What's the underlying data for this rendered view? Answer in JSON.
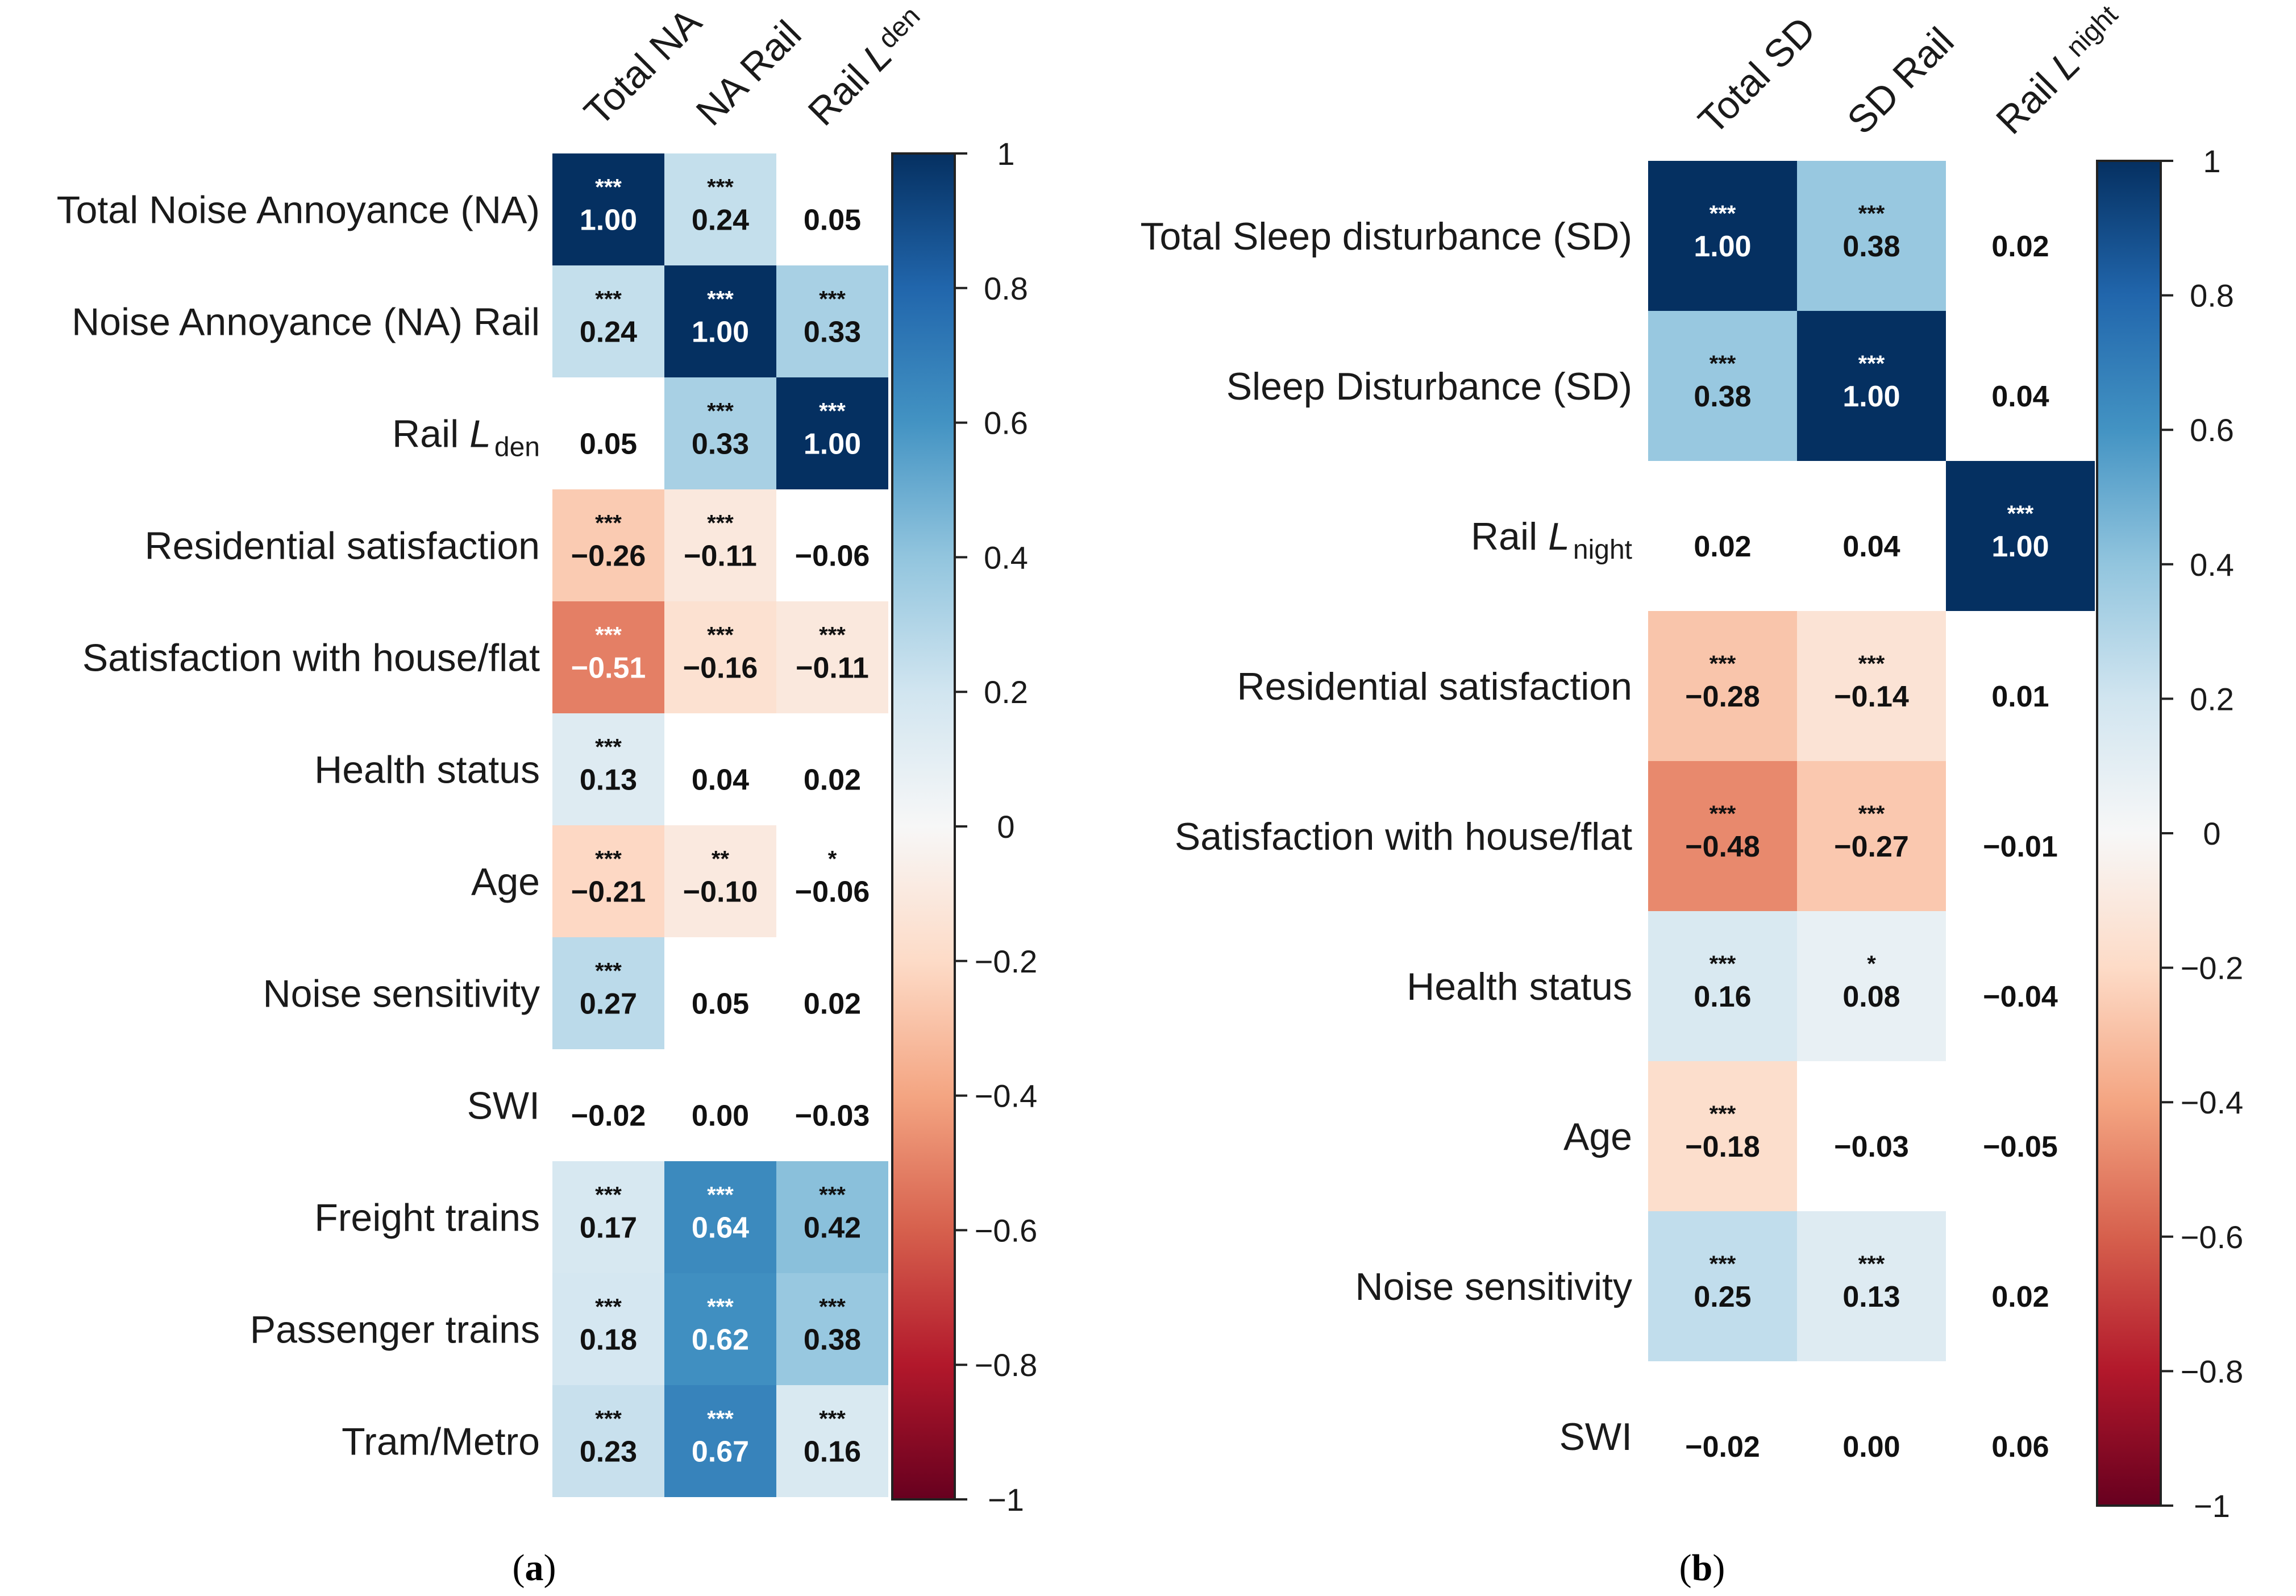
{
  "chart_data": [
    {
      "type": "heatmap",
      "panel_label": "a",
      "title": "",
      "columns": [
        {
          "text": "Total NA",
          "sub": ""
        },
        {
          "text": "NA Rail",
          "sub": ""
        },
        {
          "text": "Rail L",
          "sub": "den"
        }
      ],
      "rows": [
        {
          "text": "Total Noise Annoyance (NA)",
          "sub": ""
        },
        {
          "text": "Noise Annoyance (NA) Rail",
          "sub": ""
        },
        {
          "text": "Rail L",
          "sub": "den"
        },
        {
          "text": "Residential satisfaction",
          "sub": ""
        },
        {
          "text": "Satisfaction with house/flat",
          "sub": ""
        },
        {
          "text": "Health status",
          "sub": ""
        },
        {
          "text": "Age",
          "sub": ""
        },
        {
          "text": "Noise sensitivity",
          "sub": ""
        },
        {
          "text": "SWI",
          "sub": ""
        },
        {
          "text": "Freight trains",
          "sub": ""
        },
        {
          "text": "Passenger trains",
          "sub": ""
        },
        {
          "text": "Tram/Metro",
          "sub": ""
        }
      ],
      "values": [
        [
          1.0,
          0.24,
          0.05
        ],
        [
          0.24,
          1.0,
          0.33
        ],
        [
          0.05,
          0.33,
          1.0
        ],
        [
          -0.26,
          -0.11,
          -0.06
        ],
        [
          -0.51,
          -0.16,
          -0.11
        ],
        [
          0.13,
          0.04,
          0.02
        ],
        [
          -0.21,
          -0.1,
          -0.06
        ],
        [
          0.27,
          0.05,
          0.02
        ],
        [
          -0.02,
          0.0,
          -0.03
        ],
        [
          0.17,
          0.64,
          0.42
        ],
        [
          0.18,
          0.62,
          0.38
        ],
        [
          0.23,
          0.67,
          0.16
        ]
      ],
      "labels": [
        [
          "1.00",
          "0.24",
          "0.05"
        ],
        [
          "0.24",
          "1.00",
          "0.33"
        ],
        [
          "0.05",
          "0.33",
          "1.00"
        ],
        [
          "−0.26",
          "−0.11",
          "−0.06"
        ],
        [
          "−0.51",
          "−0.16",
          "−0.11"
        ],
        [
          "0.13",
          "0.04",
          "0.02"
        ],
        [
          "−0.21",
          "−0.10",
          "−0.06"
        ],
        [
          "0.27",
          "0.05",
          "0.02"
        ],
        [
          "−0.02",
          "0.00",
          "−0.03"
        ],
        [
          "0.17",
          "0.64",
          "0.42"
        ],
        [
          "0.18",
          "0.62",
          "0.38"
        ],
        [
          "0.23",
          "0.67",
          "0.16"
        ]
      ],
      "significance": [
        [
          "***",
          "***",
          ""
        ],
        [
          "***",
          "***",
          "***"
        ],
        [
          "",
          "***",
          "***"
        ],
        [
          "***",
          "***",
          ""
        ],
        [
          "***",
          "***",
          "***"
        ],
        [
          "***",
          "",
          ""
        ],
        [
          "***",
          "**",
          "*"
        ],
        [
          "***",
          "",
          ""
        ],
        [
          "",
          "",
          ""
        ],
        [
          "***",
          "***",
          "***"
        ],
        [
          "***",
          "***",
          "***"
        ],
        [
          "***",
          "***",
          "***"
        ]
      ],
      "colorbar": {
        "range": [
          -1,
          1
        ],
        "ticks": [
          1,
          0.8,
          0.6,
          0.4,
          0.2,
          0,
          -0.2,
          -0.4,
          -0.6,
          -0.8,
          -1
        ],
        "tick_labels": [
          "1",
          "0.8",
          "0.6",
          "0.4",
          "0.2",
          "0",
          "−0.2",
          "−0.4",
          "−0.6",
          "−0.8",
          "−1"
        ]
      }
    },
    {
      "type": "heatmap",
      "panel_label": "b",
      "title": "",
      "columns": [
        {
          "text": "Total SD",
          "sub": ""
        },
        {
          "text": "SD Rail",
          "sub": ""
        },
        {
          "text": "Rail L",
          "sub": "night"
        }
      ],
      "rows": [
        {
          "text": "Total Sleep disturbance (SD)",
          "sub": ""
        },
        {
          "text": "Sleep Disturbance (SD)",
          "sub": ""
        },
        {
          "text": "Rail L",
          "sub": "night"
        },
        {
          "text": "Residential satisfaction",
          "sub": ""
        },
        {
          "text": "Satisfaction with house/flat",
          "sub": ""
        },
        {
          "text": "Health status",
          "sub": ""
        },
        {
          "text": "Age",
          "sub": ""
        },
        {
          "text": "Noise sensitivity",
          "sub": ""
        },
        {
          "text": "SWI",
          "sub": ""
        }
      ],
      "values": [
        [
          1.0,
          0.38,
          0.02
        ],
        [
          0.38,
          1.0,
          0.04
        ],
        [
          0.02,
          0.04,
          1.0
        ],
        [
          -0.28,
          -0.14,
          0.01
        ],
        [
          -0.48,
          -0.27,
          -0.01
        ],
        [
          0.16,
          0.08,
          -0.04
        ],
        [
          -0.18,
          -0.03,
          -0.05
        ],
        [
          0.25,
          0.13,
          0.02
        ],
        [
          -0.02,
          0.0,
          0.06
        ]
      ],
      "labels": [
        [
          "1.00",
          "0.38",
          "0.02"
        ],
        [
          "0.38",
          "1.00",
          "0.04"
        ],
        [
          "0.02",
          "0.04",
          "1.00"
        ],
        [
          "−0.28",
          "−0.14",
          "0.01"
        ],
        [
          "−0.48",
          "−0.27",
          "−0.01"
        ],
        [
          "0.16",
          "0.08",
          "−0.04"
        ],
        [
          "−0.18",
          "−0.03",
          "−0.05"
        ],
        [
          "0.25",
          "0.13",
          "0.02"
        ],
        [
          "−0.02",
          "0.00",
          "0.06"
        ]
      ],
      "significance": [
        [
          "***",
          "***",
          ""
        ],
        [
          "***",
          "***",
          ""
        ],
        [
          "",
          "",
          "***"
        ],
        [
          "***",
          "***",
          ""
        ],
        [
          "***",
          "***",
          ""
        ],
        [
          "***",
          "*",
          ""
        ],
        [
          "***",
          "",
          ""
        ],
        [
          "***",
          "***",
          ""
        ],
        [
          "",
          "",
          ""
        ]
      ],
      "colorbar": {
        "range": [
          -1,
          1
        ],
        "ticks": [
          1,
          0.8,
          0.6,
          0.4,
          0.2,
          0,
          -0.2,
          -0.4,
          -0.6,
          -0.8,
          -1
        ],
        "tick_labels": [
          "1",
          "0.8",
          "0.6",
          "0.4",
          "0.2",
          "0",
          "−0.2",
          "−0.4",
          "−0.6",
          "−0.8",
          "−1"
        ]
      }
    }
  ]
}
